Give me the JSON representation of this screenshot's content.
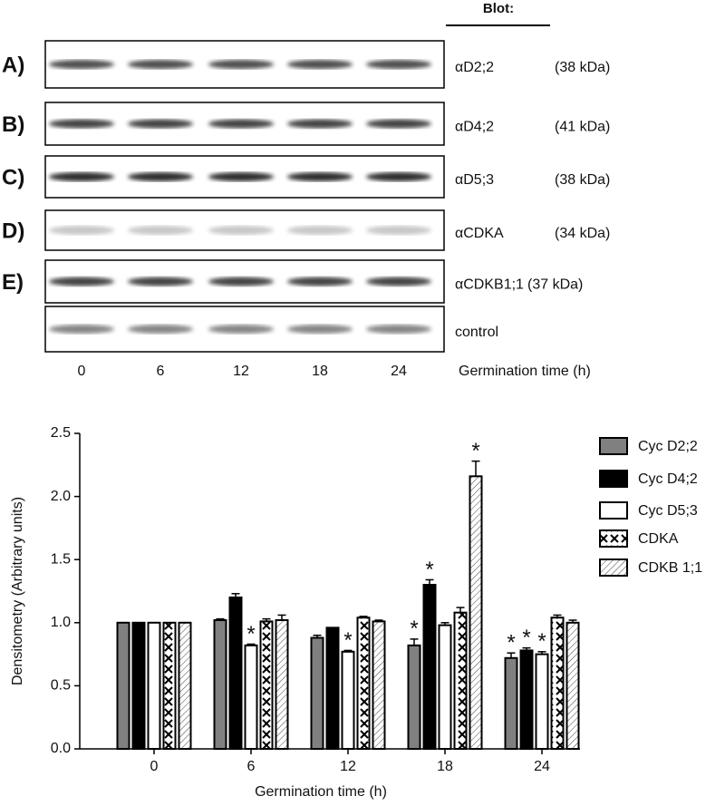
{
  "blots": {
    "header": "Blot:",
    "rows": [
      {
        "panel": "A)",
        "antibody": "αD2;2",
        "size": "(38 kDa)"
      },
      {
        "panel": "B)",
        "antibody": "αD4;2",
        "size": "(41 kDa)"
      },
      {
        "panel": "C)",
        "antibody": "αD5;3",
        "size": "(38 kDa)"
      },
      {
        "panel": "D)",
        "antibody": "αCDKA",
        "size": "(34 kDa)"
      },
      {
        "panel": "E)",
        "antibody": "αCDKB1;1",
        "size": "(37 kDa)"
      },
      {
        "antibody": "control"
      }
    ],
    "lanes": [
      "0",
      "6",
      "12",
      "18",
      "24"
    ],
    "xlabel": "Germination time (h)"
  },
  "chart_data": {
    "type": "bar",
    "xlabel": "Germination time (h)",
    "ylabel": "Densitometry (Arbitrary units)",
    "categories": [
      "0",
      "6",
      "12",
      "18",
      "24"
    ],
    "ylim": [
      0,
      2.5
    ],
    "yticks": [
      {
        "value": 0,
        "label": "0.0"
      },
      0.5,
      {
        "value": 1,
        "label": "1.0"
      },
      1.5,
      {
        "value": 2,
        "label": "2.0"
      },
      2.5
    ],
    "series": [
      {
        "name": "Cyc D2;2",
        "color": "#808080",
        "pattern": "solid",
        "values": [
          1.0,
          1.02,
          0.88,
          0.82,
          0.72
        ],
        "errors": [
          0,
          0.01,
          0.02,
          0.05,
          0.04
        ]
      },
      {
        "name": "Cyc D4;2",
        "color": "#000000",
        "pattern": "solid",
        "values": [
          1.0,
          1.2,
          0.96,
          1.3,
          0.78
        ],
        "errors": [
          0,
          0.03,
          0,
          0.04,
          0.02
        ]
      },
      {
        "name": "Cyc D5;3",
        "color": "#ffffff",
        "pattern": "solid",
        "values": [
          1.0,
          0.82,
          0.77,
          0.98,
          0.75
        ],
        "errors": [
          0,
          0.01,
          0.01,
          0.02,
          0.02
        ]
      },
      {
        "name": "CDKA",
        "color": "#ffffff",
        "pattern": "crosshatch",
        "values": [
          1.0,
          1.01,
          1.04,
          1.08,
          1.04
        ],
        "errors": [
          0,
          0.02,
          0.01,
          0.04,
          0.02
        ]
      },
      {
        "name": "CDKB 1;1",
        "color": "#ffffff",
        "pattern": "hatch",
        "values": [
          1.0,
          1.02,
          1.01,
          2.16,
          1.0
        ],
        "errors": [
          0,
          0.04,
          0.01,
          0.12,
          0.02
        ]
      }
    ],
    "annotations": [
      {
        "text": "*",
        "series": "Cyc D5;3",
        "category": "6"
      },
      {
        "text": "*",
        "series": "Cyc D5;3",
        "category": "12"
      },
      {
        "text": "*",
        "series": "Cyc D2;2",
        "category": "18"
      },
      {
        "text": "*",
        "series": "Cyc D4;2",
        "category": "18"
      },
      {
        "text": "*",
        "series": "CDKB 1;1",
        "category": "18"
      },
      {
        "text": "*",
        "series": "Cyc D2;2",
        "category": "24"
      },
      {
        "text": "*",
        "series": "Cyc D4;2",
        "category": "24"
      },
      {
        "text": "*",
        "series": "Cyc D5;3",
        "category": "24"
      }
    ],
    "legend": "right"
  }
}
